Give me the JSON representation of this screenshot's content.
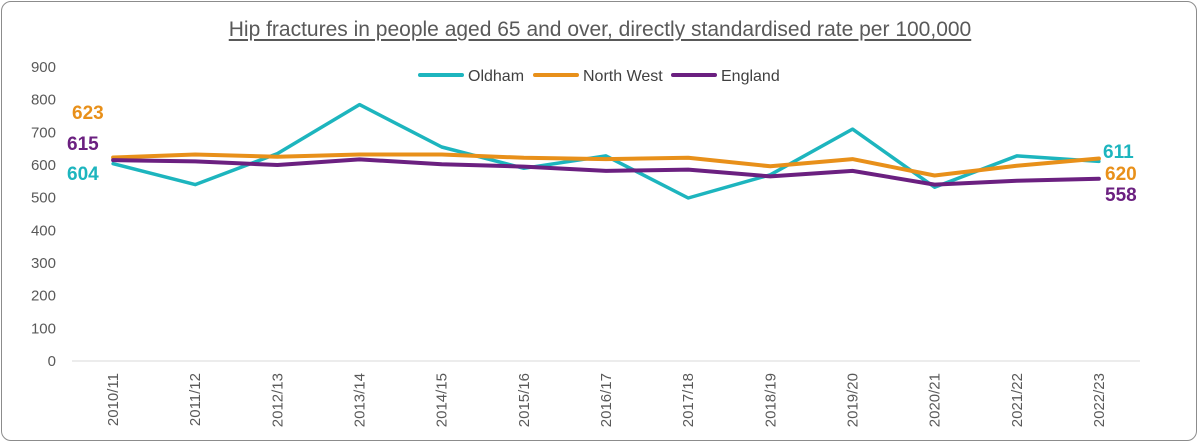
{
  "chart_data": {
    "type": "line",
    "title": "Hip fractures in people aged 65 and over, directly standardised rate per 100,000",
    "xlabel": "",
    "ylabel": "",
    "ylim": [
      0,
      900
    ],
    "yticks": [
      0,
      100,
      200,
      300,
      400,
      500,
      600,
      700,
      800,
      900
    ],
    "grid": false,
    "legend": "top-center",
    "categories": [
      "2010/11",
      "2011/12",
      "2012/13",
      "2013/14",
      "2014/15",
      "2015/16",
      "2016/17",
      "2017/18",
      "2018/19",
      "2019/20",
      "2020/21",
      "2021/22",
      "2022/23"
    ],
    "series": [
      {
        "name": "Oldham",
        "color": "#1DB5BE",
        "values": [
          604,
          540,
          635,
          785,
          655,
          590,
          628,
          499,
          570,
          710,
          532,
          628,
          611
        ],
        "start_label": "604",
        "end_label": "611"
      },
      {
        "name": "North West",
        "color": "#E8901A",
        "values": [
          623,
          632,
          625,
          632,
          632,
          622,
          618,
          622,
          596,
          618,
          568,
          598,
          620
        ],
        "start_label": "623",
        "end_label": "620"
      },
      {
        "name": "England",
        "color": "#6B2080",
        "values": [
          615,
          611,
          600,
          617,
          602,
          595,
          582,
          586,
          565,
          582,
          540,
          552,
          558
        ],
        "start_label": "615",
        "end_label": "558"
      }
    ]
  }
}
